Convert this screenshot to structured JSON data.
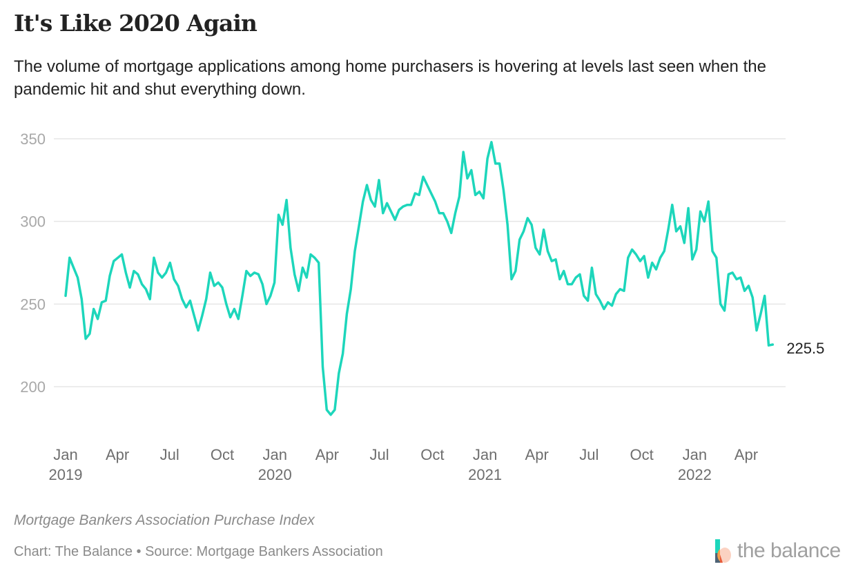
{
  "header": {
    "title": "It's Like 2020 Again",
    "subtitle": "The volume of mortgage applications among home purchasers is hovering at levels last seen when the pandemic hit and shut everything down."
  },
  "footer": {
    "caption": "Mortgage Bankers Association Purchase Index",
    "credit": "Chart: The Balance • Source: Mortgage Bankers Association",
    "logo_text": "the balance",
    "logo_icon": "the-balance-logo-icon"
  },
  "colors": {
    "line": "#1dd6bb",
    "grid": "#e6e6e6",
    "logo_teal": "#1dd6bb",
    "logo_orange": "#f5a04a",
    "logo_peach": "#fbd2c2",
    "logo_slate": "#4e6376"
  },
  "chart_data": {
    "type": "line",
    "title": "It's Like 2020 Again",
    "subtitle": "The volume of mortgage applications among home purchasers is hovering at levels last seen when the pandemic hit and shut everything down.",
    "xlabel": "",
    "ylabel": "",
    "ylim": [
      175,
      355
    ],
    "yticks": [
      200,
      250,
      300,
      350
    ],
    "ytick_labels": [
      "200",
      "250",
      "300",
      "350"
    ],
    "grid": true,
    "legend": "none",
    "frequency": "weekly",
    "x_range": [
      "2019-01-04",
      "2022-05-13"
    ],
    "xticks": [
      {
        "label": "Jan",
        "year": "2019",
        "week": 0
      },
      {
        "label": "Apr",
        "year": "",
        "week": 12.9
      },
      {
        "label": "Jul",
        "year": "",
        "week": 25.9
      },
      {
        "label": "Oct",
        "year": "",
        "week": 39.0
      },
      {
        "label": "Jan",
        "year": "2020",
        "week": 52.1
      },
      {
        "label": "Apr",
        "year": "",
        "week": 65.1
      },
      {
        "label": "Jul",
        "year": "",
        "week": 78.1
      },
      {
        "label": "Oct",
        "year": "",
        "week": 91.3
      },
      {
        "label": "Jan",
        "year": "2021",
        "week": 104.4
      },
      {
        "label": "Apr",
        "year": "",
        "week": 117.3
      },
      {
        "label": "Jul",
        "year": "",
        "week": 130.3
      },
      {
        "label": "Oct",
        "year": "",
        "week": 143.4
      },
      {
        "label": "Jan",
        "year": "2022",
        "week": 156.6
      },
      {
        "label": "Apr",
        "year": "",
        "week": 169.4
      }
    ],
    "end_label": "225.5",
    "series": [
      {
        "name": "Mortgage Bankers Association Purchase Index",
        "values": [
          255,
          278,
          272,
          266,
          253,
          229,
          232,
          247,
          241,
          251,
          252,
          267,
          276,
          278,
          280,
          269,
          260,
          270,
          268,
          262,
          259,
          253,
          278,
          269,
          266,
          269,
          275,
          265,
          261,
          253,
          248,
          252,
          243,
          234,
          243,
          253,
          269,
          261,
          263,
          260,
          250,
          242,
          247,
          241,
          255,
          270,
          267,
          269,
          268,
          262,
          250,
          255,
          263,
          304,
          298,
          313,
          284,
          268,
          258,
          272,
          266,
          280,
          278,
          275,
          212,
          186,
          183,
          186,
          208,
          220,
          244,
          259,
          282,
          297,
          312,
          322,
          313,
          309,
          325,
          305,
          311,
          306,
          301,
          307,
          309,
          310,
          310,
          317,
          316,
          327,
          322,
          317,
          312,
          305,
          305,
          300,
          293,
          305,
          315,
          342,
          326,
          331,
          316,
          318,
          314,
          338,
          348,
          335,
          335,
          319,
          298,
          265,
          270,
          289,
          294,
          302,
          298,
          284,
          280,
          295,
          282,
          276,
          277,
          265,
          270,
          262,
          262,
          266,
          268,
          255,
          252,
          272,
          256,
          252,
          247,
          251,
          249,
          256,
          259,
          258,
          278,
          283,
          280,
          276,
          279,
          266,
          275,
          271,
          278,
          282,
          295,
          310,
          294,
          297,
          287,
          308,
          277,
          283,
          306,
          300,
          312,
          282,
          278,
          250,
          246,
          268,
          269,
          265,
          266,
          258,
          261,
          254,
          234,
          244,
          255,
          225,
          225.5
        ]
      }
    ]
  }
}
